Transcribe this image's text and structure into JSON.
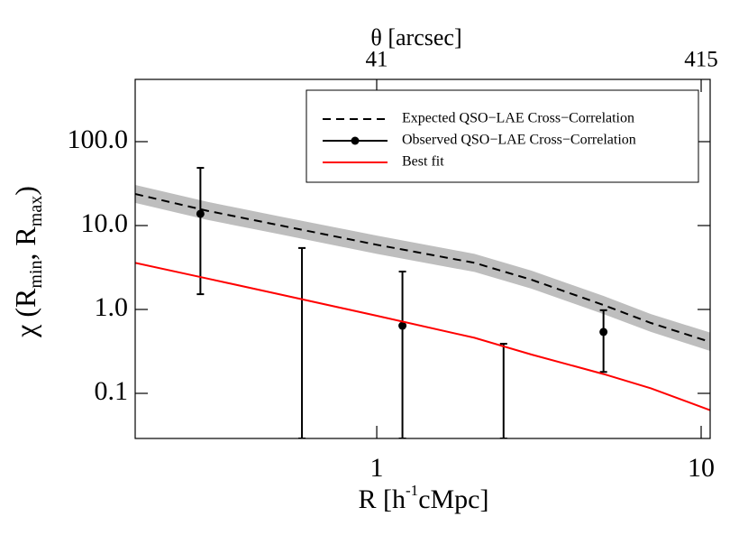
{
  "chart_data": {
    "type": "line",
    "x_label_parts": [
      "R  [h",
      "-1",
      "cMpc]"
    ],
    "y_label_parts": [
      "χ (R",
      "min",
      ", R",
      "max",
      ")"
    ],
    "x2_label": "θ  [arcsec]",
    "xscale": "log",
    "yscale": "log",
    "x2scale": "log",
    "xlim": [
      0.18,
      10.66
    ],
    "xticks": [
      1,
      10
    ],
    "x2lim": [
      7.32,
      442.5
    ],
    "x2ticks": [
      41,
      415
    ],
    "ylim": [
      0.029,
      552
    ],
    "yticks": [
      {
        "value": 100,
        "label": "100.0"
      },
      {
        "value": 10,
        "label": "10.0"
      },
      {
        "value": 1,
        "label": "1.0"
      },
      {
        "value": 0.1,
        "label": "0.1"
      }
    ],
    "legend": "upper right",
    "series": [
      {
        "name": "Expected QSO−LAE Cross−Correlation",
        "color": "#000000",
        "style": "dashed",
        "band_color": "#bebebe",
        "x": [
          0.18,
          0.3,
          0.5,
          1,
          2,
          3,
          5,
          7,
          10.66
        ],
        "values": [
          23.8,
          15,
          10.1,
          5.9,
          3.6,
          2.26,
          1.13,
          0.69,
          0.41
        ],
        "band_upper": [
          30.5,
          19.2,
          12.9,
          7.6,
          4.6,
          2.9,
          1.45,
          0.88,
          0.53
        ],
        "band_lower": [
          18.6,
          11.7,
          7.9,
          4.6,
          2.8,
          1.77,
          0.88,
          0.54,
          0.32
        ]
      },
      {
        "name": "Observed QSO−LAE Cross−Correlation",
        "color": "#000000",
        "style": "errorbar",
        "x": [
          0.286,
          0.588,
          1.2,
          2.46,
          5.0
        ],
        "values": [
          13.8,
          null,
          0.64,
          null,
          0.54
        ],
        "upper": [
          48.7,
          5.4,
          2.83,
          0.39,
          0.98
        ],
        "lower": [
          1.52,
          0.029,
          0.029,
          0.029,
          0.18
        ]
      },
      {
        "name": "Best fit",
        "color": "#ff0000",
        "style": "solid",
        "x": [
          0.18,
          0.3,
          0.5,
          1,
          2,
          3,
          5,
          7,
          10.66
        ],
        "values": [
          3.6,
          2.34,
          1.52,
          0.84,
          0.46,
          0.29,
          0.17,
          0.115,
          0.063
        ]
      }
    ]
  }
}
